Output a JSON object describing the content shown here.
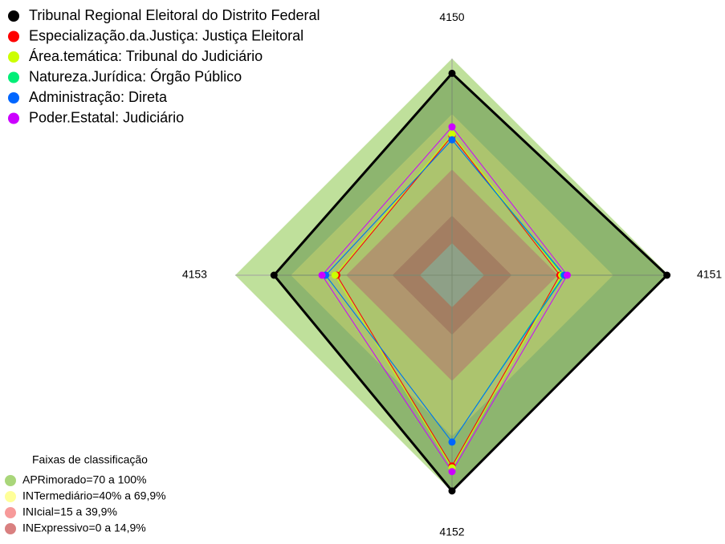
{
  "chart_data": {
    "type": "radar",
    "axes": [
      "4150",
      "4151",
      "4152",
      "4153"
    ],
    "rlim": [
      -17.4,
      100
    ],
    "series": [
      {
        "name": "Tribunal Regional Eleitoral do Distrito Federal",
        "color": "#000000",
        "values": [
          92,
          99,
          99.5,
          79
        ]
      },
      {
        "name": "Especialização.da.Justiça: Justiça Eleitoral",
        "color": "#ff0000",
        "values": [
          58,
          41,
          86,
          45
        ]
      },
      {
        "name": "Área.temática: Tribunal do Judiciário",
        "color": "#ccff00",
        "values": [
          59,
          42,
          87,
          46
        ]
      },
      {
        "name": "Natureza.Jurídica: Órgão Público",
        "color": "#00ee77",
        "values": [
          56,
          43,
          73,
          51
        ]
      },
      {
        "name": "Administração: Direta",
        "color": "#0066ff",
        "values": [
          56,
          43.5,
          73,
          51
        ]
      },
      {
        "name": "Poder.Estatal: Judiciário",
        "color": "#cc00ff",
        "values": [
          63,
          45,
          89,
          53
        ]
      }
    ],
    "bands_title": "Faixas de classificação",
    "bands": [
      {
        "name": "APRimorado=70 a 100%",
        "color": "#a9d67a",
        "range": [
          70,
          100
        ]
      },
      {
        "name": "INTermediário=40% a 69,9%",
        "color": "#ffff99",
        "range": [
          40,
          69.9
        ]
      },
      {
        "name": "INIcial=15 a 39,9%",
        "color": "#f79a9a",
        "range": [
          15,
          39.9
        ]
      },
      {
        "name": "INExpressivo=0 a 14,9%",
        "color": "#d98080",
        "range": [
          0,
          14.9
        ]
      }
    ]
  }
}
